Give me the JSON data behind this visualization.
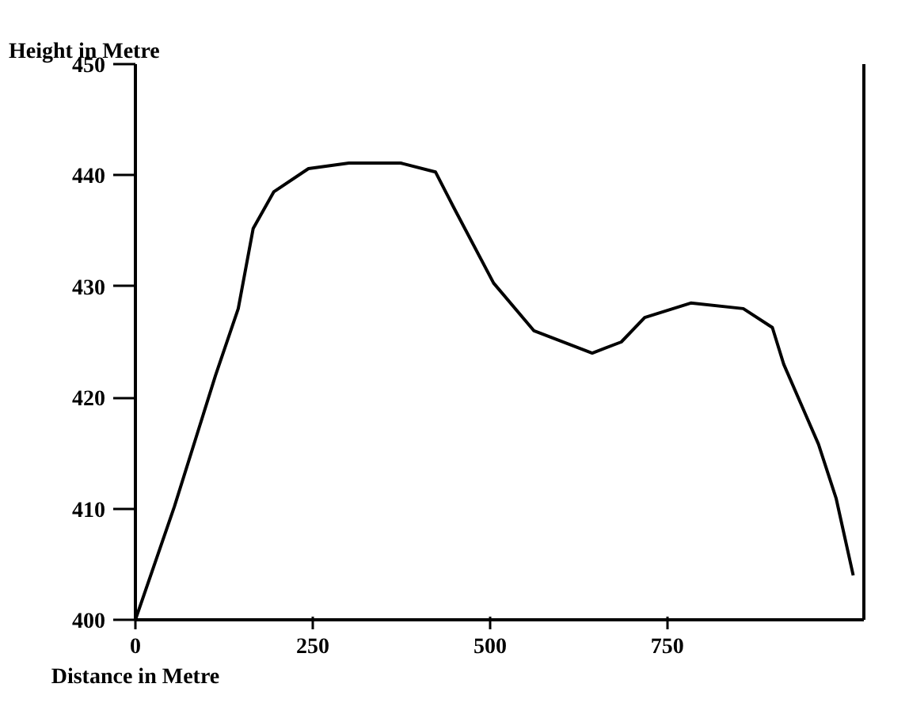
{
  "chart_data": {
    "type": "line",
    "title": "Height in Metre",
    "xlabel": "Distance in Metre",
    "x": [
      0,
      55,
      113,
      145,
      166,
      195,
      244,
      301,
      374,
      423,
      448,
      505,
      562,
      644,
      685,
      718,
      783,
      857,
      898,
      914,
      963,
      988,
      1012
    ],
    "series": [
      {
        "color": "#000000",
        "values": [
          400,
          410.2,
          422.0,
          428.0,
          435.2,
          438.5,
          440.6,
          441.1,
          441.1,
          440.3,
          437.2,
          430.3,
          426.0,
          424.0,
          425.0,
          427.2,
          428.5,
          428.0,
          426.3,
          423.0,
          415.8,
          410.9,
          404.0
        ]
      }
    ],
    "xlim": [
      0,
      1027
    ],
    "xticks": [
      0,
      250,
      500,
      750
    ],
    "ylim": [
      400,
      450
    ],
    "yticks": [
      400,
      410,
      420,
      430,
      440,
      450
    ],
    "grid": false,
    "marker": "none",
    "line_style": "solid"
  }
}
